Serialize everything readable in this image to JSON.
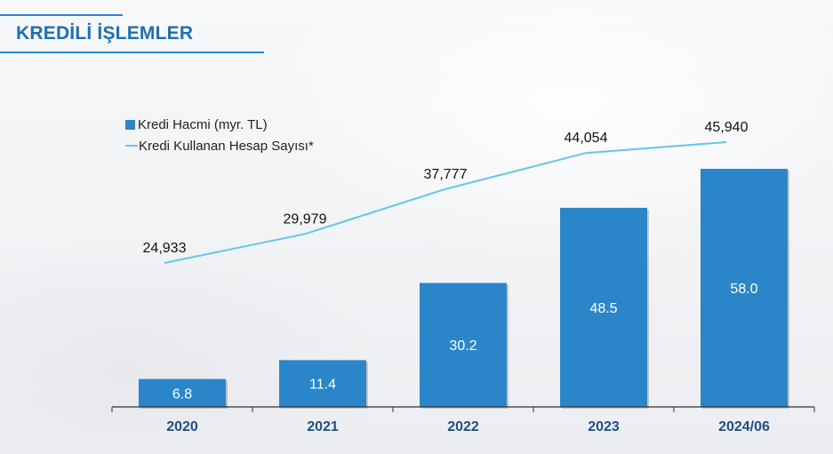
{
  "page": {
    "title": "KREDİLİ İŞLEMLER"
  },
  "legend": {
    "bar_label": "Kredi Hacmi (myr. TL)",
    "line_label": "Kredi Kullanan Hesap Sayısı*"
  },
  "colors": {
    "bar": "#2b86c9",
    "line": "#63c6e8",
    "title": "#1e6fb2",
    "axis": "#333333"
  },
  "chart_data": {
    "type": "bar",
    "categories": [
      "2020",
      "2021",
      "2022",
      "2023",
      "2024/06"
    ],
    "series": [
      {
        "name": "Kredi Hacmi (myr. TL)",
        "type": "bar",
        "values": [
          6.8,
          11.4,
          30.2,
          48.5,
          58.0
        ],
        "labels": [
          "6.8",
          "11.4",
          "30.2",
          "48.5",
          "58.0"
        ]
      },
      {
        "name": "Kredi Kullanan Hesap Sayısı*",
        "type": "line",
        "values": [
          24933,
          29979,
          37777,
          44054,
          45940
        ],
        "labels": [
          "24,933",
          "29,979",
          "37,777",
          "44,054",
          "45,940"
        ]
      }
    ],
    "title": "",
    "xlabel": "",
    "ylabel": "",
    "legend_position": "top-left",
    "grid": false
  }
}
